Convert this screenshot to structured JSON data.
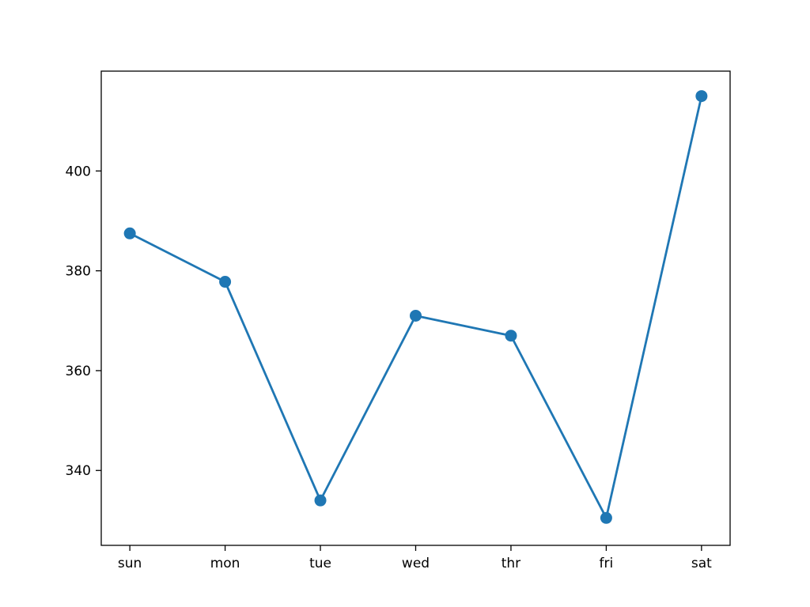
{
  "chart_data": {
    "type": "line",
    "title": "",
    "xlabel": "",
    "ylabel": "",
    "categories": [
      "sun",
      "mon",
      "tue",
      "wed",
      "thr",
      "fri",
      "sat"
    ],
    "values": [
      387.5,
      377.8,
      334,
      371,
      367,
      330.5,
      415
    ],
    "yticks": [
      340,
      360,
      380,
      400
    ],
    "ylim": [
      325,
      420
    ],
    "xlim": [
      -0.3,
      6.3
    ],
    "line_color": "#1f77b4",
    "marker_color": "#1f77b4",
    "marker": "circle",
    "axes_color": "#000000",
    "grid": false,
    "legend": "none"
  }
}
